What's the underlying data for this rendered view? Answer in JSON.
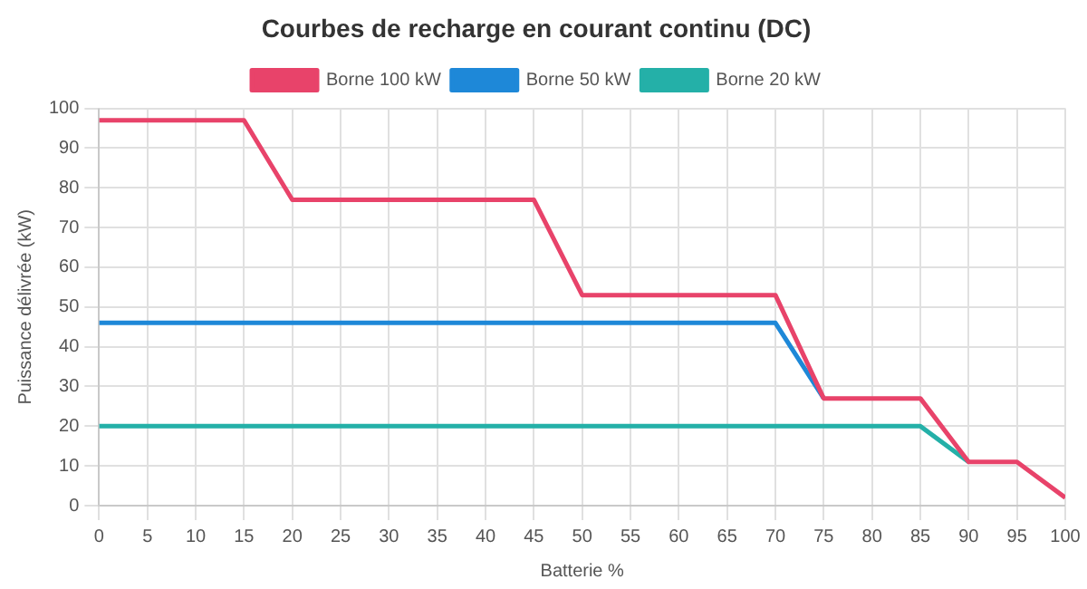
{
  "chart_data": {
    "type": "line",
    "title": "Courbes de recharge en courant continu (DC)",
    "xlabel": "Batterie %",
    "ylabel": "Puissance délivrée (kW)",
    "x": [
      0,
      5,
      10,
      15,
      20,
      25,
      30,
      35,
      40,
      45,
      50,
      55,
      60,
      65,
      70,
      75,
      80,
      85,
      90,
      95,
      100
    ],
    "series": [
      {
        "name": "Borne 100 kW",
        "color": "#e8436a",
        "values": [
          97,
          97,
          97,
          97,
          77,
          77,
          77,
          77,
          77,
          77,
          53,
          53,
          53,
          53,
          53,
          27,
          27,
          27,
          11,
          11,
          2
        ]
      },
      {
        "name": "Borne 50 kW",
        "color": "#1e88d8",
        "values": [
          46,
          46,
          46,
          46,
          46,
          46,
          46,
          46,
          46,
          46,
          46,
          46,
          46,
          46,
          46,
          27,
          null,
          null,
          null,
          null,
          null
        ]
      },
      {
        "name": "Borne 20 kW",
        "color": "#24b0a8",
        "values": [
          20,
          20,
          20,
          20,
          20,
          20,
          20,
          20,
          20,
          20,
          20,
          20,
          20,
          20,
          20,
          20,
          20,
          20,
          11,
          null,
          null
        ]
      }
    ],
    "xlim": [
      0,
      100
    ],
    "xticks": [
      0,
      5,
      10,
      15,
      20,
      25,
      30,
      35,
      40,
      45,
      50,
      55,
      60,
      65,
      70,
      75,
      80,
      85,
      90,
      95,
      100
    ],
    "ylim": [
      0,
      100
    ],
    "yticks": [
      0,
      10,
      20,
      30,
      40,
      50,
      60,
      70,
      80,
      90,
      100
    ],
    "grid": true,
    "legend": "top",
    "marker": "none",
    "line_style": "solid"
  }
}
